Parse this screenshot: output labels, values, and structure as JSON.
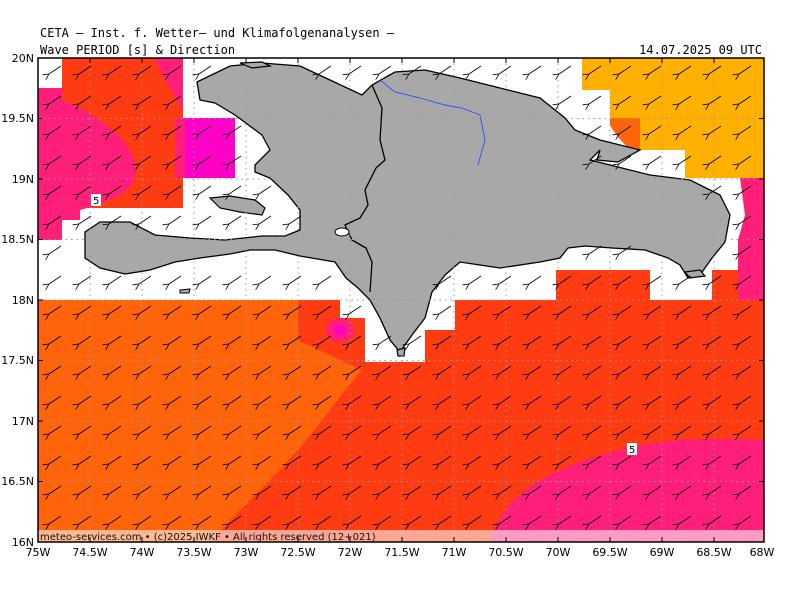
{
  "header": {
    "title": "CETA — Inst. f. Wetter— und Klimafolgenanalysen —",
    "subtitle": "Wave PERIOD [s] & Direction",
    "timestamp": "14.07.2025 09 UTC"
  },
  "axes": {
    "lon_labels": [
      "75W",
      "74.5W",
      "74W",
      "73.5W",
      "73W",
      "72.5W",
      "72W",
      "71.5W",
      "71W",
      "70.5W",
      "70W",
      "69.5W",
      "69W",
      "68.5W",
      "68W"
    ],
    "lat_labels": [
      "20N",
      "19.5N",
      "19N",
      "18.5N",
      "18N",
      "17.5N",
      "17N",
      "16.5N",
      "16N"
    ]
  },
  "contour_labels": [
    "5",
    "5"
  ],
  "credit": "meteo-services.com • (c)2025 IWKF • All rights reserved (12+021)",
  "colors": {
    "period_lt5": "#ff1f7a",
    "period_5_6": "#ff3b12",
    "period_6_7": "#ff640a",
    "period_7_8": "#ffb000",
    "period_magenta": "#ff00c8",
    "land": "#a8a8a8",
    "river": "#3050ff"
  }
}
